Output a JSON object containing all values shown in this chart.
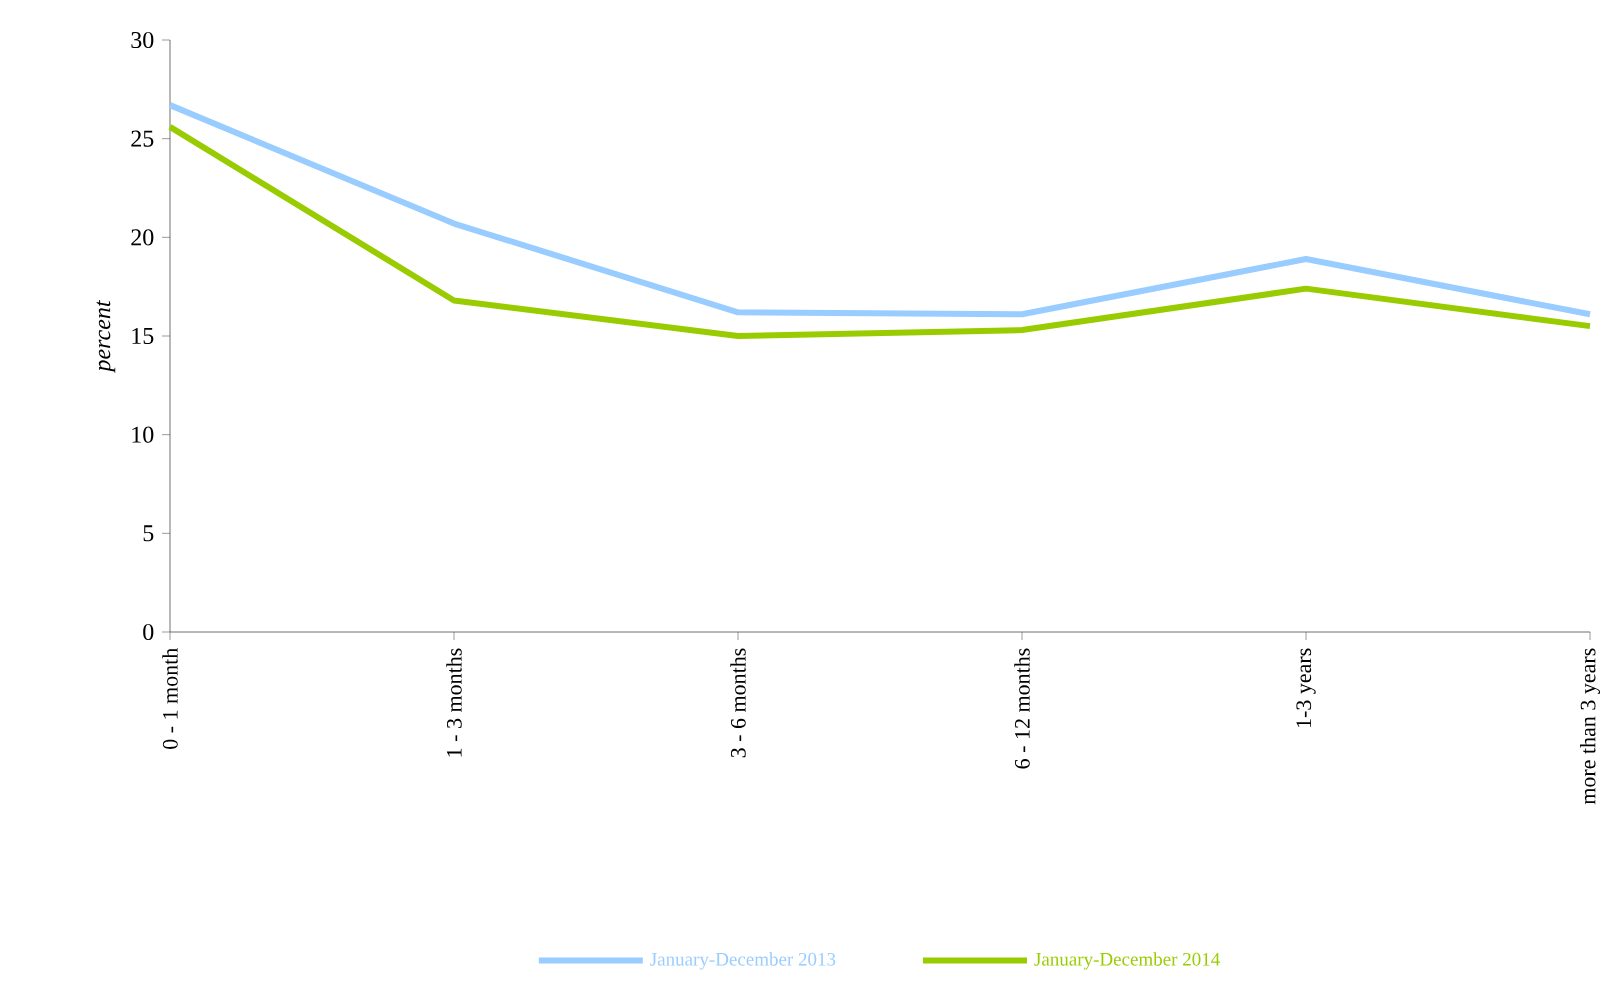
{
  "chart_data": {
    "type": "line",
    "ylabel": "percent",
    "categories": [
      "0 - 1 month",
      "1 - 3 months",
      "3 - 6 months",
      "6 - 12 months",
      "1-3 years",
      "more than 3 years"
    ],
    "series": [
      {
        "name": "January-December 2013",
        "color": "#99ccff",
        "values": [
          26.7,
          20.7,
          16.2,
          16.1,
          18.9,
          16.1
        ]
      },
      {
        "name": "January-December 2014",
        "color": "#99cc00",
        "values": [
          25.6,
          16.8,
          15.0,
          15.3,
          17.4,
          15.5
        ]
      }
    ],
    "ylim": [
      0,
      30
    ],
    "yticks": [
      0,
      5,
      10,
      15,
      20,
      25,
      30
    ],
    "grid": false,
    "legend": "bottom",
    "marker": "none",
    "line_style": "solid"
  }
}
